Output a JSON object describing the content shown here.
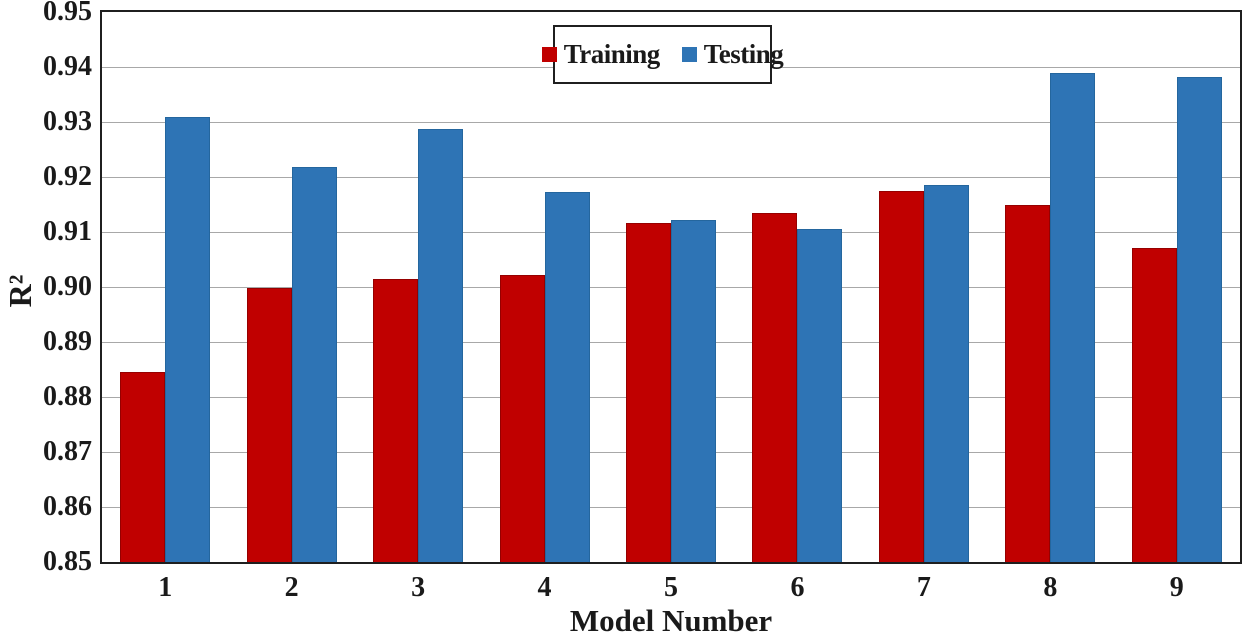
{
  "chart_data": {
    "type": "bar",
    "title": "",
    "xlabel": "Model Number",
    "ylabel": "R²",
    "categories": [
      "1",
      "2",
      "3",
      "4",
      "5",
      "6",
      "7",
      "8",
      "9"
    ],
    "series": [
      {
        "name": "Training",
        "color": "#C00000",
        "border_color": "#960000",
        "values": [
          0.8845,
          0.8998,
          0.9015,
          0.9022,
          0.9117,
          0.9135,
          0.9175,
          0.915,
          0.9071
        ]
      },
      {
        "name": "Testing",
        "color": "#2E74B5",
        "border_color": "#24669E",
        "values": [
          0.931,
          0.9219,
          0.9287,
          0.9172,
          0.9121,
          0.9106,
          0.9185,
          0.939,
          0.9381
        ]
      }
    ],
    "ylim": [
      0.85,
      0.95
    ],
    "ytick_step": 0.01,
    "ytick_labels": [
      "0.85",
      "0.86",
      "0.87",
      "0.88",
      "0.89",
      "0.90",
      "0.91",
      "0.92",
      "0.93",
      "0.94",
      "0.95"
    ],
    "grid": true,
    "legend_position": "top-center",
    "colors": {
      "gridline": "#A8A8A8",
      "axis_border": "#1F1F1F",
      "background": "#FFFFFF",
      "text": "#1A1A1A"
    }
  }
}
